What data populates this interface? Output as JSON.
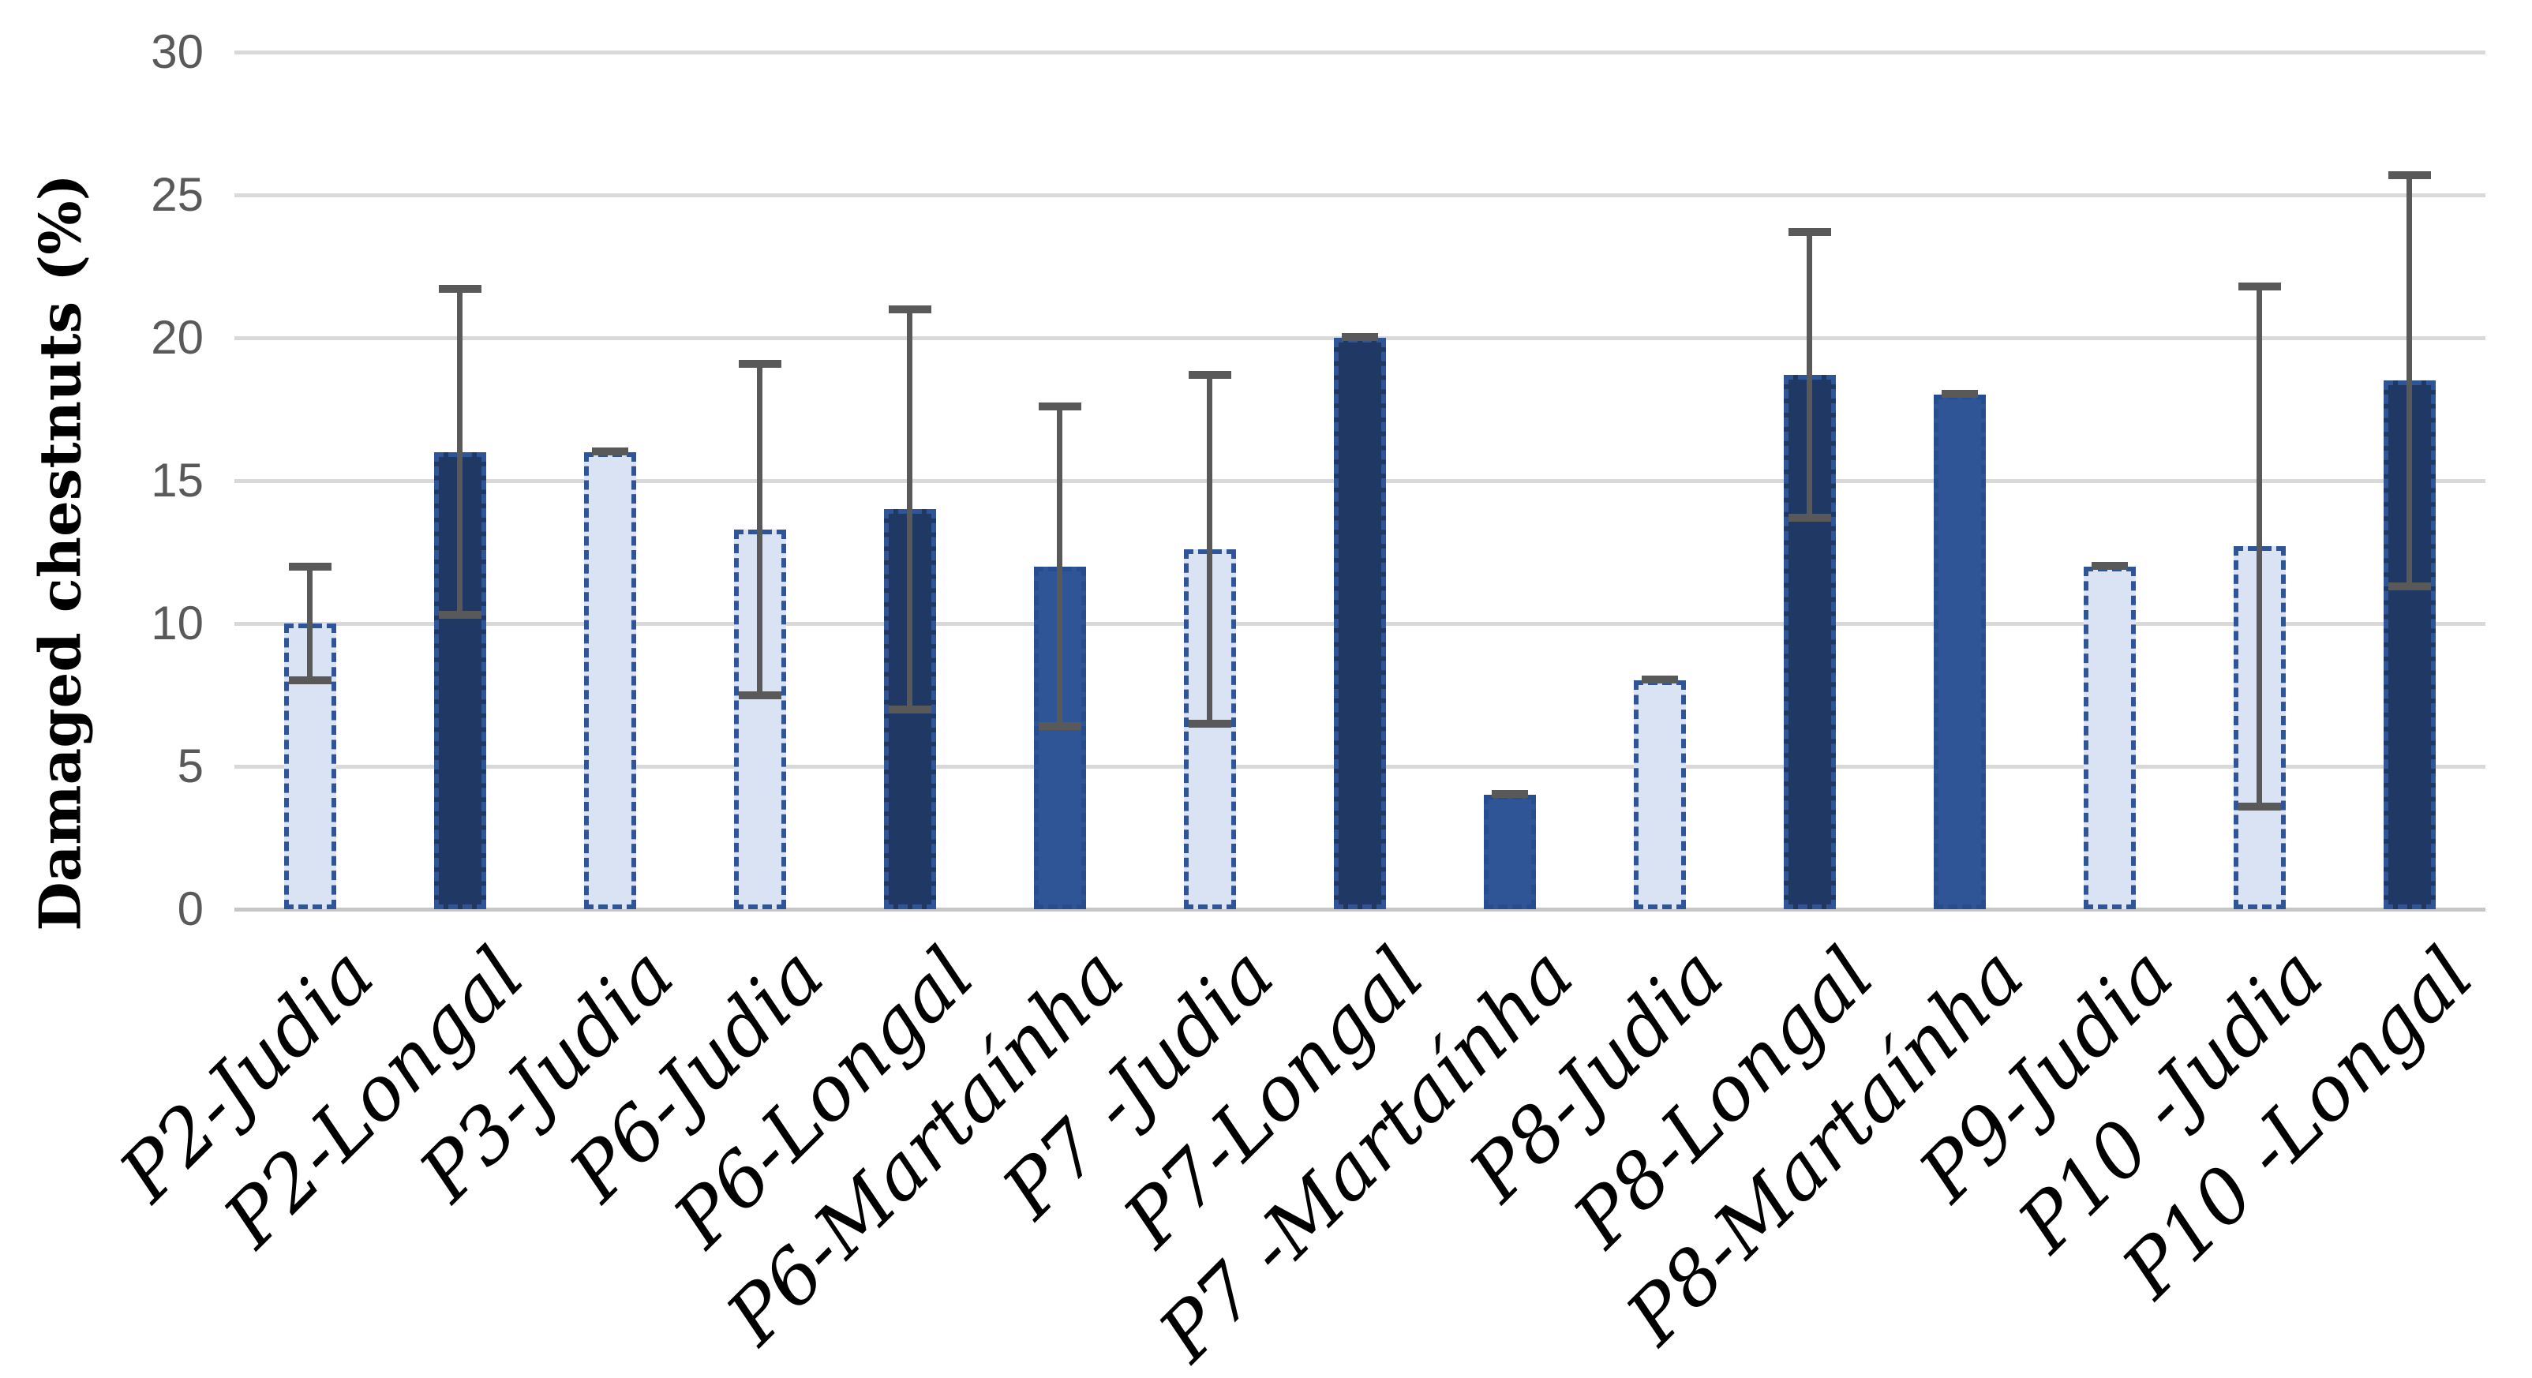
{
  "chart_data": {
    "type": "bar",
    "title": "",
    "xlabel": "",
    "ylabel": "Damaged chestnuts (%)",
    "ylim": [
      0,
      30
    ],
    "yticks": [
      0,
      5,
      10,
      15,
      20,
      25,
      30
    ],
    "grid": "horizontal-light-gray",
    "legend": "none",
    "x_tick_rotation_deg": 45,
    "categories": [
      "P2-Judia",
      "P2-Longal",
      "P3-Judia",
      "P6-Judia",
      "P6-Longal",
      "P6-Martaínha",
      "P7 -Judia",
      "P7-Longal",
      "P7 -Martaínha",
      "P8-Judia",
      "P8-Longal",
      "P8-Martaínha",
      "P9-Judia",
      "P10 -Judia",
      "P10 -Longal"
    ],
    "bars": [
      {
        "label": "P2-Judia",
        "variety": "judia",
        "value": 10.0,
        "error": 2.0,
        "error_low": 8.0,
        "error_high": 12.0
      },
      {
        "label": "P2-Longal",
        "variety": "longal",
        "value": 16.0,
        "error": 5.7,
        "error_low": 10.3,
        "error_high": 21.7
      },
      {
        "label": "P3-Judia",
        "variety": "judia",
        "value": 16.0,
        "error": 0,
        "error_low": 16.0,
        "error_high": 16.0
      },
      {
        "label": "P6-Judia",
        "variety": "judia",
        "value": 13.3,
        "error": 5.8,
        "error_low": 7.5,
        "error_high": 19.1
      },
      {
        "label": "P6-Longal",
        "variety": "longal",
        "value": 14.0,
        "error": 7.0,
        "error_low": 7.0,
        "error_high": 21.0
      },
      {
        "label": "P6-Martaínha",
        "variety": "martainha",
        "value": 12.0,
        "error": 5.6,
        "error_low": 6.4,
        "error_high": 17.6
      },
      {
        "label": "P7 -Judia",
        "variety": "judia",
        "value": 12.6,
        "error": 6.1,
        "error_low": 6.5,
        "error_high": 18.7
      },
      {
        "label": "P7-Longal",
        "variety": "longal",
        "value": 20.0,
        "error": 0,
        "error_low": 20.0,
        "error_high": 20.0
      },
      {
        "label": "P7 -Martaínha",
        "variety": "martainha",
        "value": 4.0,
        "error": 0,
        "error_low": 4.0,
        "error_high": 4.0
      },
      {
        "label": "P8-Judia",
        "variety": "judia",
        "value": 8.0,
        "error": 0,
        "error_low": 8.0,
        "error_high": 8.0
      },
      {
        "label": "P8-Longal",
        "variety": "longal",
        "value": 18.7,
        "error": 5.0,
        "error_low": 13.7,
        "error_high": 23.7
      },
      {
        "label": "P8-Martaínha",
        "variety": "martainha",
        "value": 18.0,
        "error": 0,
        "error_low": 18.0,
        "error_high": 18.0
      },
      {
        "label": "P9-Judia",
        "variety": "judia",
        "value": 12.0,
        "error": 0,
        "error_low": 12.0,
        "error_high": 12.0
      },
      {
        "label": "P10 -Judia",
        "variety": "judia",
        "value": 12.7,
        "error": 9.1,
        "error_low": 3.6,
        "error_high": 21.8
      },
      {
        "label": "P10 -Longal",
        "variety": "longal",
        "value": 18.5,
        "error": 7.2,
        "error_low": 11.3,
        "error_high": 25.7
      }
    ],
    "variety_styles": {
      "judia": {
        "fill": "#DAE3F3",
        "border": "#2F5597"
      },
      "longal": {
        "fill": "#203864",
        "border": "#2F5597"
      },
      "martainha": {
        "fill": "#2F5597",
        "border": "#264D8F"
      }
    },
    "colors": {
      "error_bar": "#595959",
      "gridline": "#D9D9D9",
      "zero_line": "#C6C6C6",
      "tick_label": "#595959",
      "axis_label": "#000000",
      "background": "#FFFFFF"
    }
  }
}
